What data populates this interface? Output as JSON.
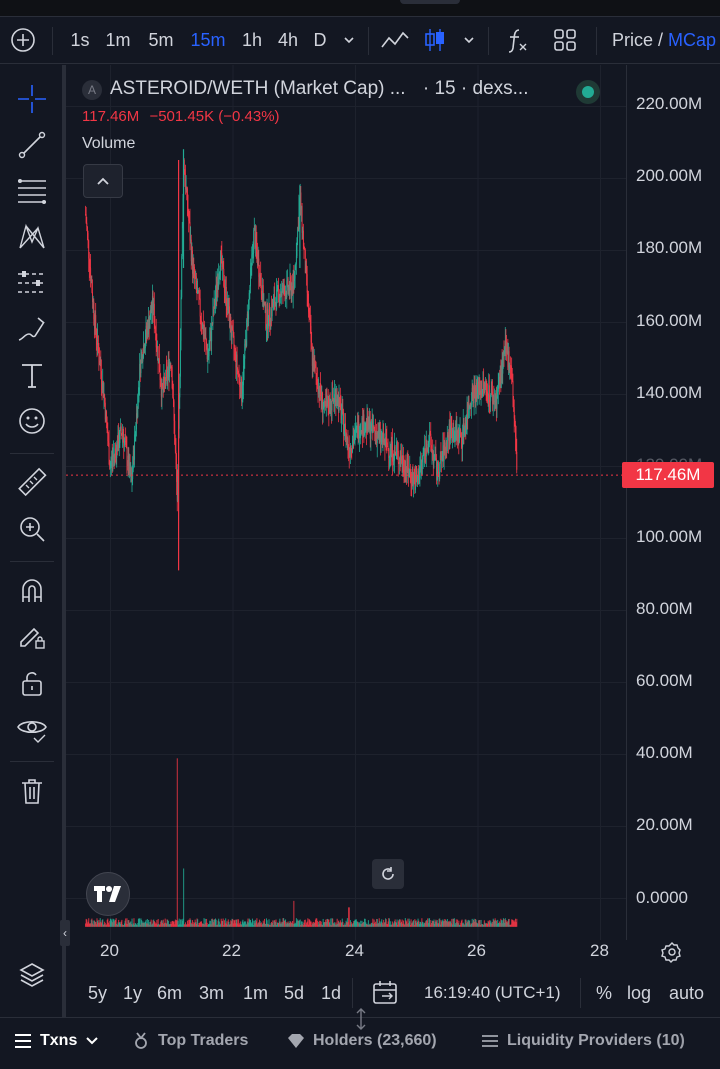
{
  "toolbar": {
    "intervals": [
      "1s",
      "1m",
      "5m",
      "15m",
      "1h",
      "4h",
      "D"
    ],
    "active_interval": "15m",
    "price_label": "Price",
    "mcap_label": "MCap"
  },
  "legend": {
    "badge": "A",
    "title": "ASTEROID/WETH (Market Cap) ...",
    "suffix": "· 15 · dexs...",
    "last": "117.46M",
    "change": "−501.45K (−0.43%)",
    "volume_label": "Volume"
  },
  "price_axis": [
    "220.00M",
    "200.00M",
    "180.00M",
    "160.00M",
    "140.00M",
    "120.00M",
    "100.00M",
    "80.00M",
    "60.00M",
    "40.00M",
    "20.00M",
    "0.0000"
  ],
  "last_price_tag": "117.46M",
  "time_axis": [
    "20",
    "22",
    "24",
    "26",
    "28"
  ],
  "bottom_bar": {
    "ranges": [
      "5y",
      "1y",
      "6m",
      "3m",
      "1m",
      "5d",
      "1d"
    ],
    "clock": "16:19:40 (UTC+1)",
    "percent": "%",
    "log": "log",
    "auto": "auto"
  },
  "footer": {
    "txns": "Txns",
    "top_traders": "Top Traders",
    "holders": "Holders (23,660)",
    "liquidity": "Liquidity Providers (10)"
  },
  "colors": {
    "up": "#22ab94",
    "down": "#f23645",
    "accent": "#2962ff",
    "background": "#131722"
  },
  "chart_data": {
    "type": "candlestick",
    "x_labels": [
      "20",
      "22",
      "24",
      "26",
      "28"
    ],
    "ylim": [
      0,
      220
    ],
    "y_unit": "M",
    "last": 117.46,
    "price_path": [
      {
        "day": 19.6,
        "value": 190
      },
      {
        "day": 19.75,
        "value": 160
      },
      {
        "day": 19.9,
        "value": 140
      },
      {
        "day": 20.0,
        "value": 120
      },
      {
        "day": 20.2,
        "value": 130
      },
      {
        "day": 20.35,
        "value": 115
      },
      {
        "day": 20.5,
        "value": 150
      },
      {
        "day": 20.7,
        "value": 165
      },
      {
        "day": 20.85,
        "value": 140
      },
      {
        "day": 21.0,
        "value": 150
      },
      {
        "day": 21.1,
        "value": 110
      },
      {
        "day": 21.2,
        "value": 205
      },
      {
        "day": 21.35,
        "value": 175
      },
      {
        "day": 21.6,
        "value": 150
      },
      {
        "day": 21.8,
        "value": 178
      },
      {
        "day": 22.0,
        "value": 155
      },
      {
        "day": 22.15,
        "value": 140
      },
      {
        "day": 22.35,
        "value": 185
      },
      {
        "day": 22.55,
        "value": 160
      },
      {
        "day": 22.75,
        "value": 168
      },
      {
        "day": 23.0,
        "value": 170
      },
      {
        "day": 23.1,
        "value": 195
      },
      {
        "day": 23.3,
        "value": 150
      },
      {
        "day": 23.5,
        "value": 135
      },
      {
        "day": 23.7,
        "value": 140
      },
      {
        "day": 23.9,
        "value": 125
      },
      {
        "day": 24.1,
        "value": 132
      },
      {
        "day": 24.3,
        "value": 130
      },
      {
        "day": 24.55,
        "value": 125
      },
      {
        "day": 24.75,
        "value": 122
      },
      {
        "day": 25.0,
        "value": 115
      },
      {
        "day": 25.2,
        "value": 128
      },
      {
        "day": 25.35,
        "value": 118
      },
      {
        "day": 25.55,
        "value": 130
      },
      {
        "day": 25.75,
        "value": 128
      },
      {
        "day": 25.9,
        "value": 140
      },
      {
        "day": 26.1,
        "value": 142
      },
      {
        "day": 26.3,
        "value": 138
      },
      {
        "day": 26.45,
        "value": 152
      },
      {
        "day": 26.55,
        "value": 148
      },
      {
        "day": 26.65,
        "value": 117.46
      }
    ],
    "volume_spikes": [
      {
        "day": 21.1,
        "value": 52
      },
      {
        "day": 21.2,
        "value": 18
      },
      {
        "day": 23.0,
        "value": 8
      },
      {
        "day": 23.9,
        "value": 6
      },
      {
        "day": 26.65,
        "value": 4
      }
    ]
  }
}
